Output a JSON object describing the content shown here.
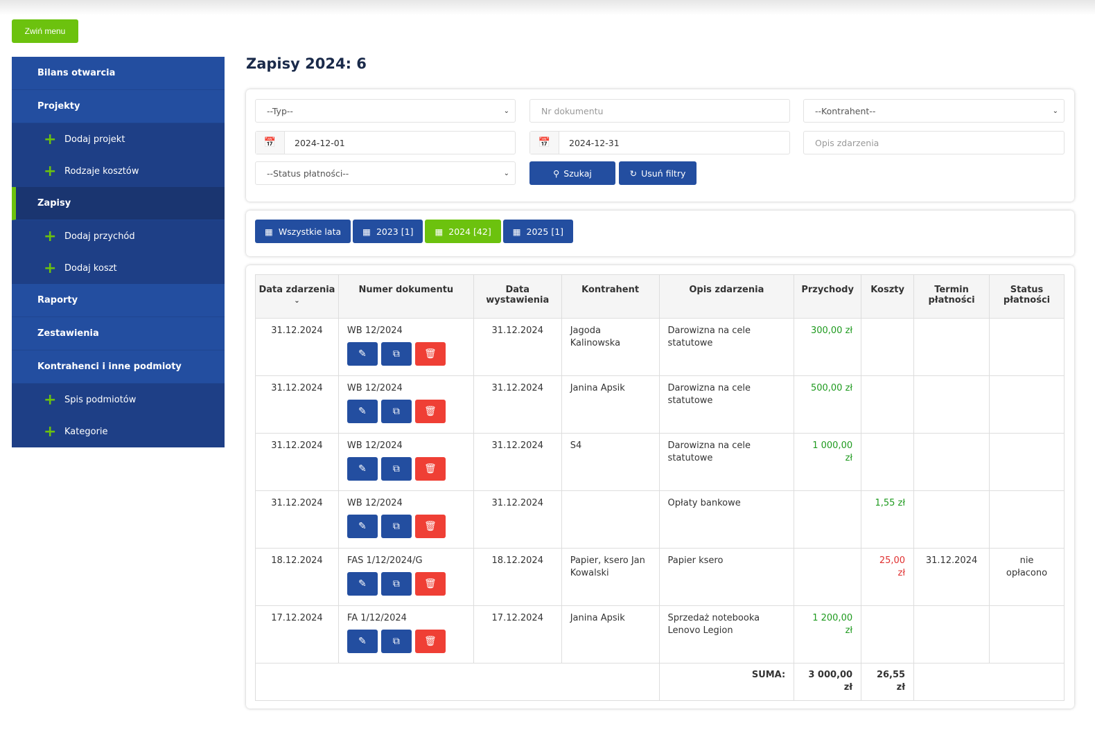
{
  "collapse_label": "Zwiń menu",
  "sidebar": {
    "items": [
      {
        "label": "Bilans otwarcia",
        "type": "main"
      },
      {
        "label": "Projekty",
        "type": "main"
      },
      {
        "label": "Dodaj projekt",
        "type": "sub"
      },
      {
        "label": "Rodzaje kosztów",
        "type": "sub"
      },
      {
        "label": "Zapisy",
        "type": "main",
        "active": true
      },
      {
        "label": "Dodaj przychód",
        "type": "sub"
      },
      {
        "label": "Dodaj koszt",
        "type": "sub"
      },
      {
        "label": "Raporty",
        "type": "main"
      },
      {
        "label": "Zestawienia",
        "type": "main"
      },
      {
        "label": "Kontrahenci i inne podmioty",
        "type": "main"
      },
      {
        "label": "Spis podmiotów",
        "type": "sub"
      },
      {
        "label": "Kategorie",
        "type": "sub"
      }
    ]
  },
  "title": "Zapisy 2024: 6",
  "filters": {
    "type": "--Typ--",
    "doc_placeholder": "Nr dokumentu",
    "contractor": "--Kontrahent--",
    "date_from": "2024-12-01",
    "date_to": "2024-12-31",
    "desc_placeholder": "Opis zdarzenia",
    "payment_status": "--Status płatności--",
    "search": "Szukaj",
    "clear": "Usuń filtry"
  },
  "years": [
    {
      "label": "Wszystkie lata"
    },
    {
      "label": "2023 [1]"
    },
    {
      "label": "2024 [42]",
      "active": true
    },
    {
      "label": "2025 [1]"
    }
  ],
  "table": {
    "headers": [
      "Data zdarzenia",
      "Numer dokumentu",
      "Data wystawienia",
      "Kontrahent",
      "Opis zdarzenia",
      "Przychody",
      "Koszty",
      "Termin płatności",
      "Status płatności"
    ],
    "rows": [
      [
        "31.12.2024",
        "WB 12/2024",
        "31.12.2024",
        "Jagoda Kalinowska",
        "Darowizna na cele statutowe",
        "300,00 zł",
        "",
        "",
        ""
      ],
      [
        "31.12.2024",
        "WB 12/2024",
        "31.12.2024",
        "Janina Apsik",
        "Darowizna na cele statutowe",
        "500,00 zł",
        "",
        "",
        ""
      ],
      [
        "31.12.2024",
        "WB 12/2024",
        "31.12.2024",
        "S4",
        "Darowizna na cele statutowe",
        "1 000,00 zł",
        "",
        "",
        ""
      ],
      [
        "31.12.2024",
        "WB 12/2024",
        "31.12.2024",
        "",
        "Opłaty bankowe",
        "",
        "1,55 zł",
        "",
        ""
      ],
      [
        "18.12.2024",
        "FAS 1/12/2024/G",
        "18.12.2024",
        "Papier, ksero Jan Kowalski",
        "Papier ksero",
        "",
        "25,00 zł",
        "31.12.2024",
        "nie opłacono"
      ],
      [
        "17.12.2024",
        "FA 1/12/2024",
        "17.12.2024",
        "Janina Apsik",
        "Sprzedaż notebooka Lenovo Legion",
        "1 200,00 zł",
        "",
        "",
        ""
      ]
    ],
    "sum_label": "SUMA:",
    "sum_income": "3 000,00 zł",
    "sum_costs": "26,55 zł"
  }
}
